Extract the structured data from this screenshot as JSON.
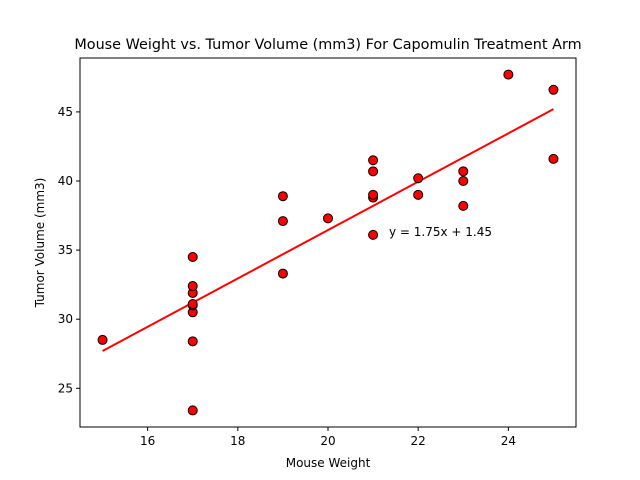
{
  "chart_data": {
    "type": "scatter",
    "title": "Mouse Weight vs. Tumor Volume (mm3) For Capomulin Treatment Arm",
    "xlabel": "Mouse Weight",
    "ylabel": "Tumor Volume (mm3)",
    "xlim": [
      14.5,
      25.5
    ],
    "ylim": [
      22.2,
      48.9
    ],
    "xticks": [
      16,
      18,
      20,
      22,
      24
    ],
    "yticks": [
      25,
      30,
      35,
      40,
      45
    ],
    "grid": false,
    "annotation": "y = 1.75x + 1.45",
    "regression": {
      "slope": 1.75,
      "intercept": 1.45,
      "x_range": [
        15,
        25
      ]
    },
    "points": [
      {
        "x": 15,
        "y": 28.5
      },
      {
        "x": 17,
        "y": 23.4
      },
      {
        "x": 17,
        "y": 28.4
      },
      {
        "x": 17,
        "y": 30.5
      },
      {
        "x": 17,
        "y": 31.0
      },
      {
        "x": 17,
        "y": 31.1
      },
      {
        "x": 17,
        "y": 31.9
      },
      {
        "x": 17,
        "y": 32.4
      },
      {
        "x": 17,
        "y": 34.5
      },
      {
        "x": 19,
        "y": 33.3
      },
      {
        "x": 19,
        "y": 37.1
      },
      {
        "x": 19,
        "y": 38.9
      },
      {
        "x": 20,
        "y": 37.3
      },
      {
        "x": 21,
        "y": 36.1
      },
      {
        "x": 21,
        "y": 38.8
      },
      {
        "x": 21,
        "y": 39.0
      },
      {
        "x": 21,
        "y": 40.7
      },
      {
        "x": 21,
        "y": 41.5
      },
      {
        "x": 22,
        "y": 39.0
      },
      {
        "x": 22,
        "y": 40.2
      },
      {
        "x": 23,
        "y": 38.2
      },
      {
        "x": 23,
        "y": 40.0
      },
      {
        "x": 23,
        "y": 40.7
      },
      {
        "x": 24,
        "y": 47.7
      },
      {
        "x": 25,
        "y": 41.6
      },
      {
        "x": 25,
        "y": 46.6
      }
    ],
    "marker_color": "#ff0000",
    "marker_edge_color": "#000000",
    "line_color": "#ff0000",
    "annotation_color": "#ff0000"
  }
}
